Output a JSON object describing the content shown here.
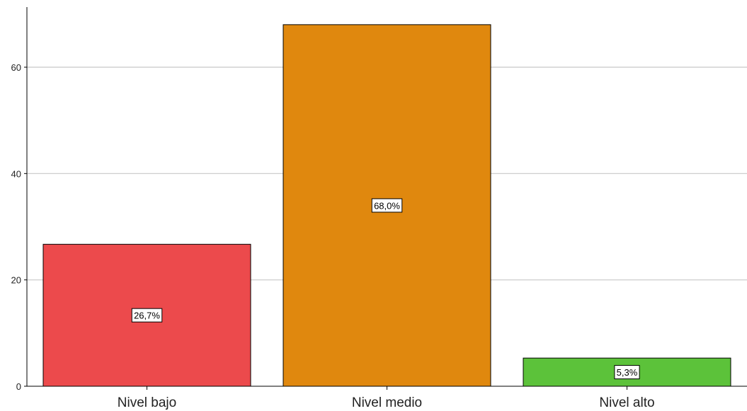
{
  "chart_data": {
    "type": "bar",
    "categories": [
      "Nivel bajo",
      "Nivel medio",
      "Nivel alto"
    ],
    "values": [
      26.7,
      68.0,
      5.3
    ],
    "data_labels": [
      "26,7%",
      "68,0%",
      "5,3%"
    ],
    "colors": [
      "#ec4a4c",
      "#e0880e",
      "#5cc23a"
    ],
    "title": "",
    "xlabel": "",
    "ylabel": "",
    "ylim": [
      0,
      70
    ],
    "yticks": [
      0,
      20,
      40,
      60
    ],
    "ytick_labels": [
      "0",
      "20",
      "40",
      "60"
    ],
    "grid": true,
    "legend": "none"
  }
}
